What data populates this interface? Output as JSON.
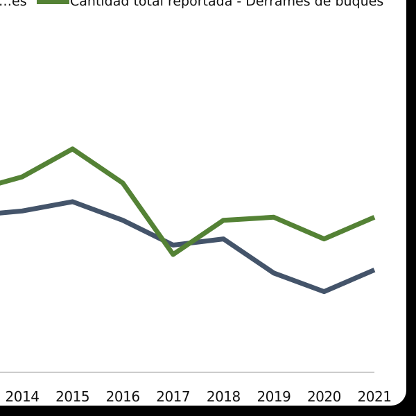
{
  "chart_data": {
    "type": "line",
    "categories": [
      "2014",
      "2015",
      "2016",
      "2017",
      "2018",
      "2019",
      "2020",
      "2021"
    ],
    "series": [
      {
        "name": "…es",
        "color": "#44546a",
        "values": [
          52,
          55,
          49,
          41,
          43,
          32,
          26,
          33
        ]
      },
      {
        "name": "Cantidad total reportada - Derrames de buques",
        "color": "#548235",
        "values": [
          63,
          72,
          61,
          38,
          49,
          50,
          43,
          50
        ]
      }
    ],
    "ylim": [
      0,
      120
    ],
    "grid": false,
    "legend_position": "top"
  }
}
